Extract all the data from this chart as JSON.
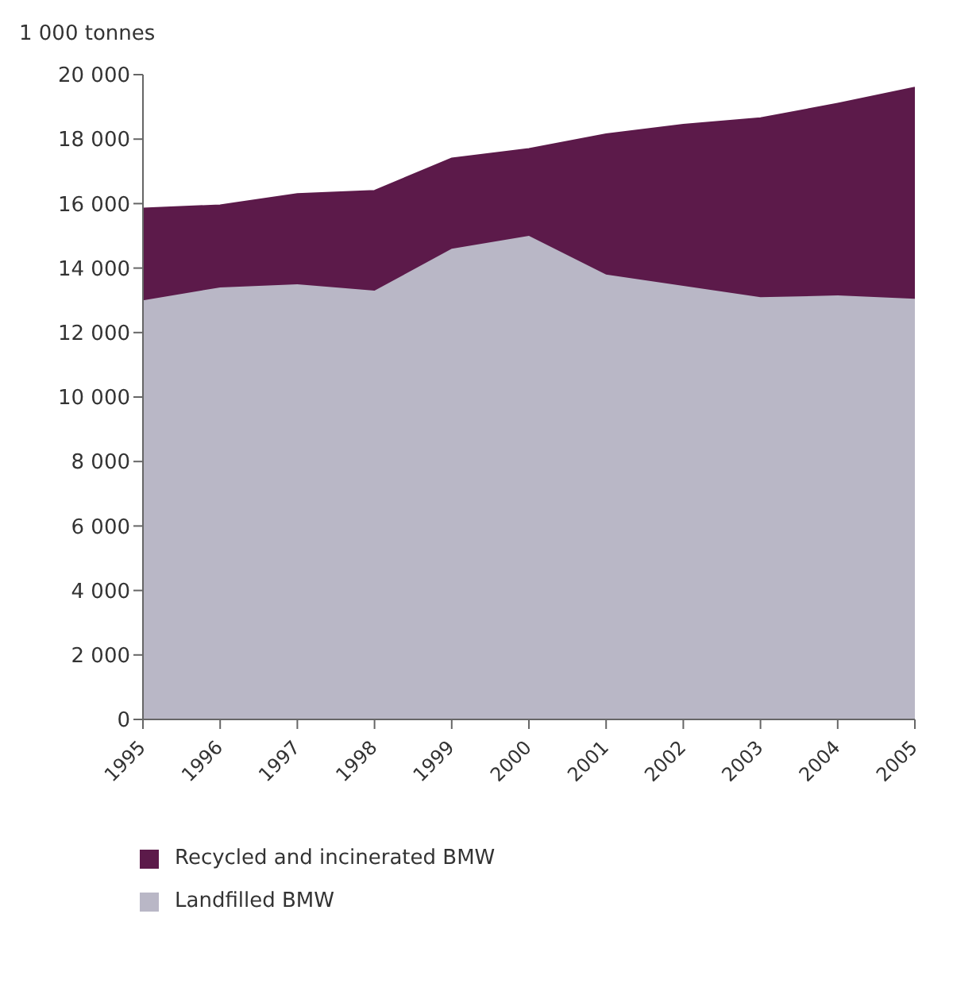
{
  "chart_data": {
    "type": "area",
    "stacked": true,
    "ylabel": "1 000 tonnes",
    "categories": [
      "1995",
      "1996",
      "1997",
      "1998",
      "1999",
      "2000",
      "2001",
      "2002",
      "2003",
      "2004",
      "2005"
    ],
    "series": [
      {
        "name": "Landfilled BMW",
        "color": "#b9b7c6",
        "values": [
          13000,
          13400,
          13500,
          13300,
          14600,
          15000,
          13800,
          13450,
          13100,
          13150,
          13050
        ]
      },
      {
        "name": "Recycled and incinerated BMW",
        "color": "#5c1a4a",
        "values": [
          2850,
          2550,
          2800,
          3100,
          2800,
          2700,
          4350,
          5000,
          5550,
          5950,
          6550
        ]
      }
    ],
    "ylim": [
      0,
      20000
    ],
    "yticks": [
      {
        "value": 0,
        "label": "0"
      },
      {
        "value": 2000,
        "label": "2 000"
      },
      {
        "value": 4000,
        "label": "4 000"
      },
      {
        "value": 6000,
        "label": "6 000"
      },
      {
        "value": 8000,
        "label": "8 000"
      },
      {
        "value": 10000,
        "label": "10 000"
      },
      {
        "value": 12000,
        "label": "12 000"
      },
      {
        "value": 14000,
        "label": "14 000"
      },
      {
        "value": 16000,
        "label": "16 000"
      },
      {
        "value": 18000,
        "label": "18 000"
      },
      {
        "value": 20000,
        "label": "20 000"
      }
    ],
    "grid": false,
    "legend": "bottom"
  }
}
